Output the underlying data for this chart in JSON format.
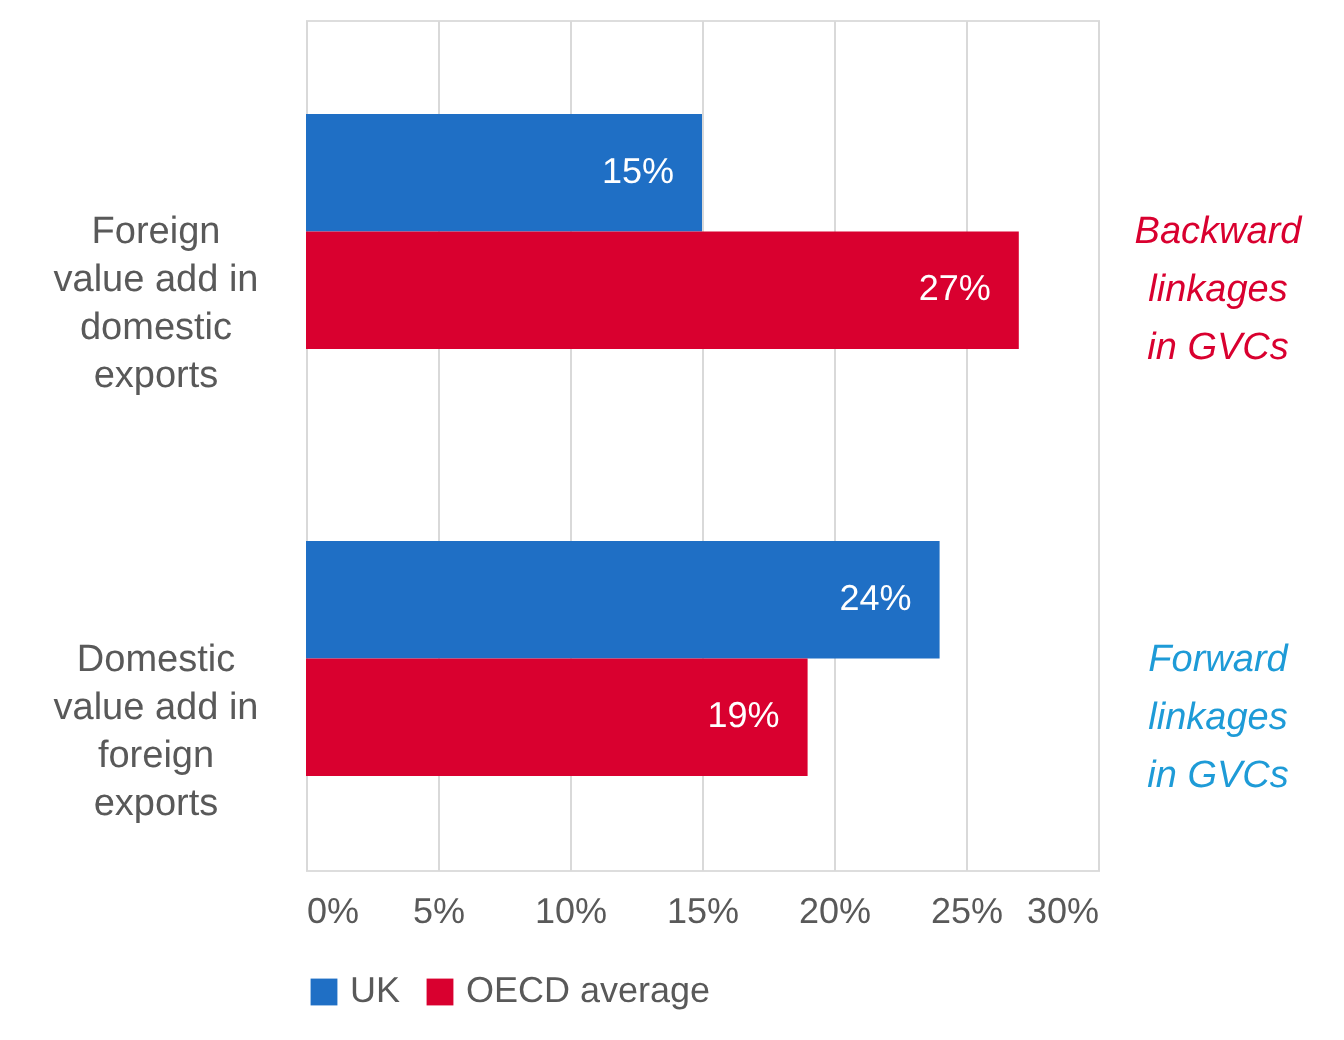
{
  "chart_data": {
    "type": "bar",
    "orientation": "horizontal",
    "categories": [
      "Foreign value add in domestic exports",
      "Domestic value add in foreign exports"
    ],
    "series": [
      {
        "name": "UK",
        "color": "#1f6fc5",
        "values": [
          15,
          24
        ],
        "value_labels": [
          "15%",
          "24%"
        ]
      },
      {
        "name": "OECD average",
        "color": "#d9002f",
        "values": [
          27,
          19
        ],
        "value_labels": [
          "27%",
          "19%"
        ]
      }
    ],
    "xlim": [
      0,
      30
    ],
    "xticks": [
      {
        "value": 0,
        "label": "0%"
      },
      {
        "value": 5,
        "label": "5%"
      },
      {
        "value": 10,
        "label": "10%"
      },
      {
        "value": 15,
        "label": "15%"
      },
      {
        "value": 20,
        "label": "20%"
      },
      {
        "value": 25,
        "label": "25%"
      },
      {
        "value": 30,
        "label": "30%"
      }
    ],
    "grid": "x",
    "legend": "bottom",
    "annotations": [
      "Backward linkages in GVCs",
      "Forward linkages in GVCs"
    ]
  }
}
